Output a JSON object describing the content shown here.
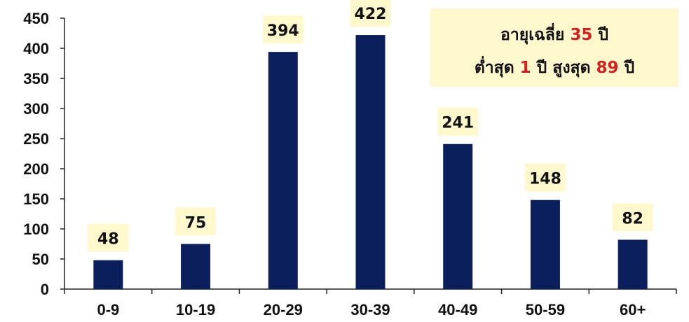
{
  "chart_data": {
    "type": "bar",
    "categories": [
      "0-9",
      "10-19",
      "20-29",
      "30-39",
      "40-49",
      "50-59",
      "60+"
    ],
    "values": [
      48,
      75,
      394,
      422,
      241,
      148,
      82
    ],
    "ylim": [
      0,
      450
    ],
    "yticks": [
      0,
      50,
      100,
      150,
      200,
      250,
      300,
      350,
      400,
      450
    ],
    "grid": false,
    "legend": "none",
    "colors": {
      "bar": "#0b1f5c",
      "label_bg": "#fff8cc",
      "note_bg": "#fff8cc",
      "highlight": "#d42020"
    },
    "annotation": {
      "line1": [
        {
          "text": "อายุเฉลี่ย ",
          "highlight": false
        },
        {
          "text": "35",
          "highlight": true
        },
        {
          "text": " ปี",
          "highlight": false
        }
      ],
      "line2": [
        {
          "text": "ต่ำสุด ",
          "highlight": false
        },
        {
          "text": "1",
          "highlight": true
        },
        {
          "text": " ปี สูงสุด ",
          "highlight": false
        },
        {
          "text": "89",
          "highlight": true
        },
        {
          "text": " ปี",
          "highlight": false
        }
      ]
    }
  }
}
